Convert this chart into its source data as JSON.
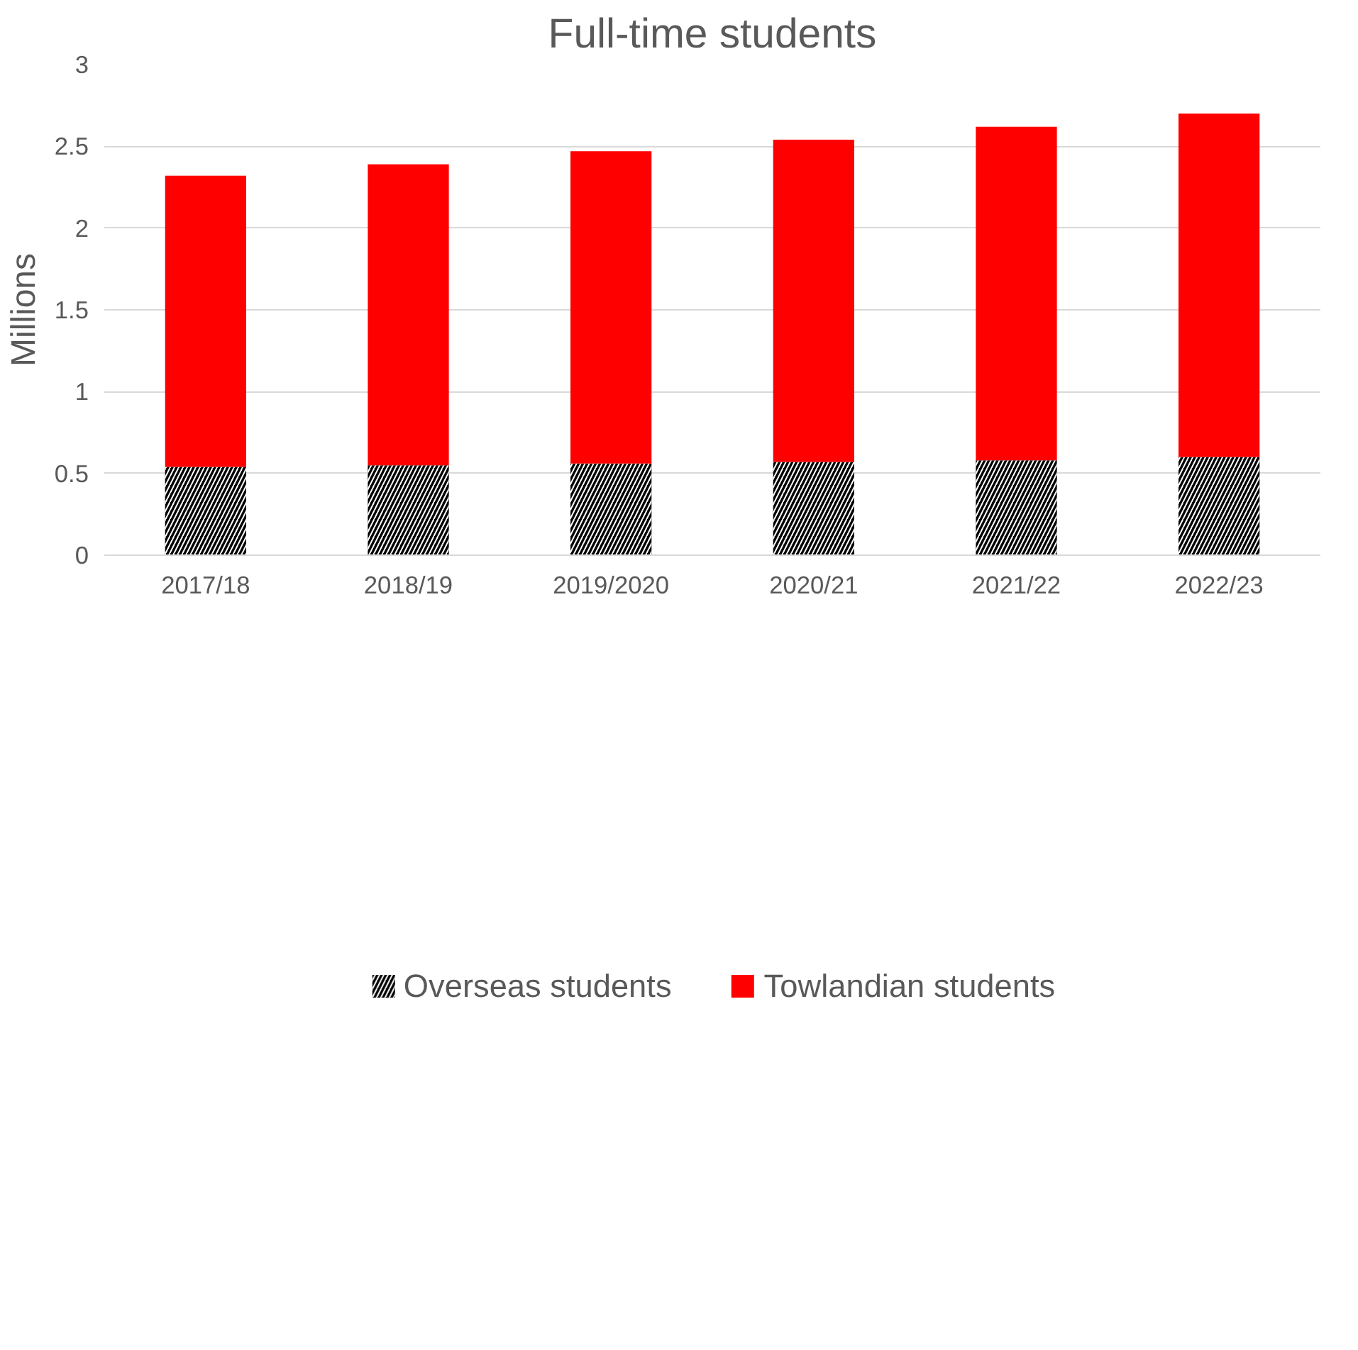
{
  "chart_data": {
    "type": "bar",
    "title": "Full-time students",
    "ylabel": "Millions",
    "stacked": true,
    "categories": [
      "2017/18",
      "2018/19",
      "2019/2020",
      "2020/21",
      "2021/22",
      "2022/23"
    ],
    "series": [
      {
        "name": "Overseas students",
        "color": "#000000",
        "values": [
          0.54,
          0.55,
          0.56,
          0.57,
          0.58,
          0.6
        ]
      },
      {
        "name": "Towlandian students",
        "color": "#ff0000",
        "values": [
          1.78,
          1.84,
          1.91,
          1.97,
          2.04,
          2.1
        ]
      }
    ],
    "ylim": [
      0,
      3
    ],
    "yticks": [
      0,
      0.5,
      1,
      1.5,
      2,
      2.5,
      3
    ],
    "grid": "y",
    "legend": "bottom"
  }
}
